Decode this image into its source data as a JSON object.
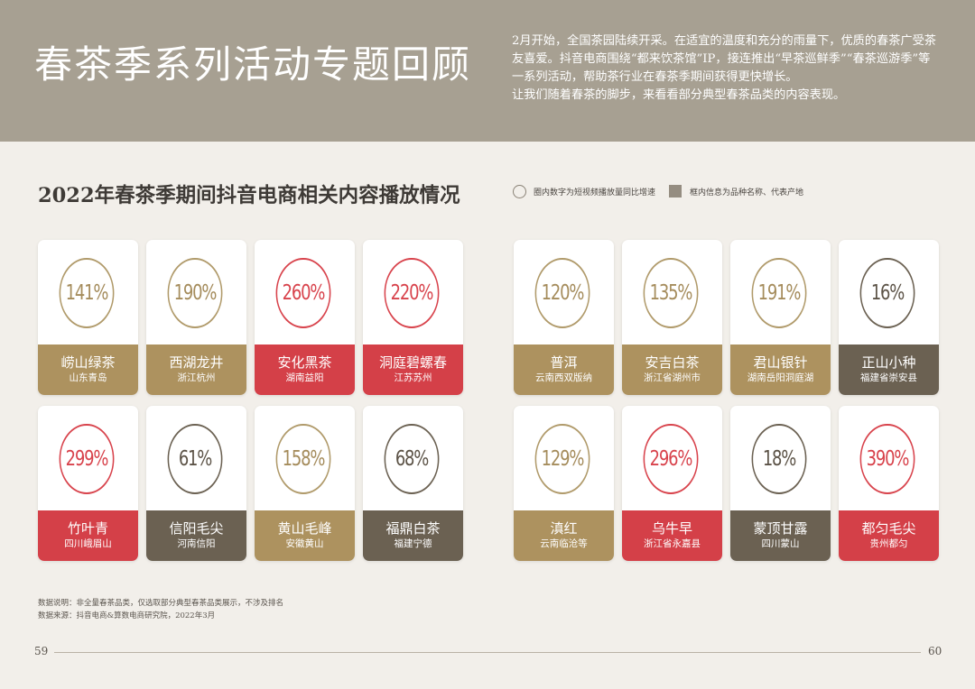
{
  "header": {
    "title": "春茶季系列活动专题回顾",
    "intro_lines": [
      "2月开始，全国茶园陆续开采。在适宜的温度和充分的雨量下，优质的春茶广受茶",
      "友喜爱。抖音电商围绕“都来饮茶馆”IP，接连推出“早茶巡鲜季”“春茶巡游季”等",
      "一系列活动，帮助茶行业在春茶季期间获得更快增长。",
      "让我们随着春茶的脚步，来看看部分典型春茶品类的内容表现。"
    ]
  },
  "section": {
    "title": "2022年春茶季期间抖音电商相关内容播放情况",
    "legend_circle": "圈内数字为短视频播放量同比增速",
    "legend_square": "框内信息为品种名称、代表产地"
  },
  "colors": {
    "gold": "#ad925f",
    "red": "#d44048",
    "dark": "#6b6152",
    "header_bg": "#a7a092"
  },
  "cards": [
    {
      "pct": "141%",
      "name": "崂山绿茶",
      "place": "山东青岛",
      "color": "gold"
    },
    {
      "pct": "190%",
      "name": "西湖龙井",
      "place": "浙江杭州",
      "color": "gold"
    },
    {
      "pct": "260%",
      "name": "安化黑茶",
      "place": "湖南益阳",
      "color": "red"
    },
    {
      "pct": "220%",
      "name": "洞庭碧螺春",
      "place": "江苏苏州",
      "color": "red"
    },
    {
      "pct": "120%",
      "name": "普洱",
      "place": "云南西双版纳",
      "color": "gold"
    },
    {
      "pct": "135%",
      "name": "安吉白茶",
      "place": "浙江省湖州市",
      "color": "gold"
    },
    {
      "pct": "191%",
      "name": "君山银针",
      "place": "湖南岳阳洞庭湖",
      "color": "gold"
    },
    {
      "pct": "16%",
      "name": "正山小种",
      "place": "福建省崇安县",
      "color": "dark"
    },
    {
      "pct": "299%",
      "name": "竹叶青",
      "place": "四川峨眉山",
      "color": "red"
    },
    {
      "pct": "61%",
      "name": "信阳毛尖",
      "place": "河南信阳",
      "color": "dark"
    },
    {
      "pct": "158%",
      "name": "黄山毛峰",
      "place": "安徽黄山",
      "color": "gold"
    },
    {
      "pct": "68%",
      "name": "福鼎白茶",
      "place": "福建宁德",
      "color": "dark"
    },
    {
      "pct": "129%",
      "name": "滇红",
      "place": "云南临沧等",
      "color": "gold"
    },
    {
      "pct": "296%",
      "name": "乌牛早",
      "place": "浙江省永嘉县",
      "color": "red"
    },
    {
      "pct": "18%",
      "name": "蒙顶甘露",
      "place": "四川蒙山",
      "color": "dark"
    },
    {
      "pct": "390%",
      "name": "都匀毛尖",
      "place": "贵州都匀",
      "color": "red"
    }
  ],
  "notes": {
    "line1": "数据说明：非全量春茶品类，仅选取部分典型春茶品类展示，不涉及排名",
    "line2": "数据来源：抖音电商&算数电商研究院，2022年3月"
  },
  "pages": {
    "left": "59",
    "right": "60"
  }
}
